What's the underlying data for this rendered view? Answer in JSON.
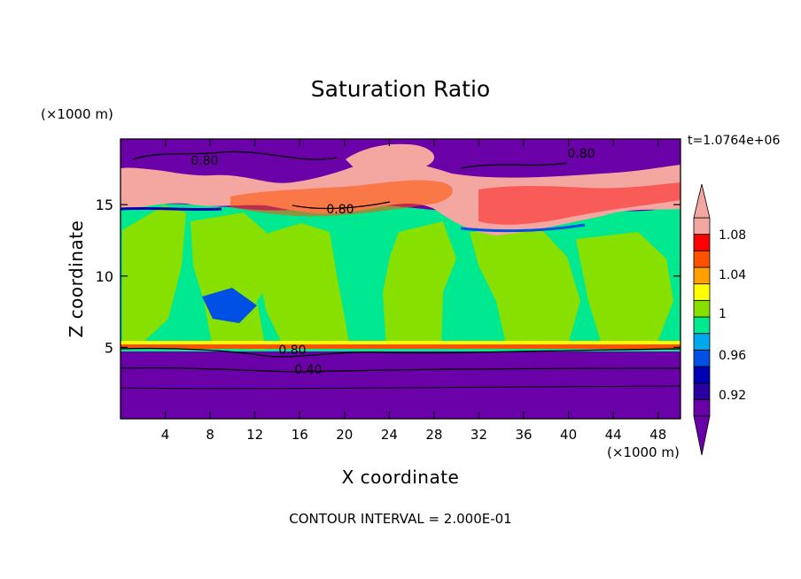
{
  "chart_data": {
    "type": "heatmap",
    "title": "Saturation Ratio",
    "xlabel": "X coordinate",
    "ylabel": "Z coordinate",
    "x_unit": "(×1000 m)",
    "y_unit": "(×1000 m)",
    "time_label": "t=1.0764e+06",
    "footer": "CONTOUR INTERVAL = 2.000E-01",
    "xlim": [
      0,
      50
    ],
    "ylim": [
      0,
      19.6
    ],
    "xticks": [
      4,
      8,
      12,
      16,
      20,
      24,
      28,
      32,
      36,
      40,
      44,
      48
    ],
    "yticks": [
      5,
      10,
      15
    ],
    "grid": false,
    "colorbar": {
      "position": "right",
      "labels": [
        "1.08",
        "1.04",
        "1",
        "0.96",
        "0.92"
      ],
      "colors_low_to_high": [
        "#6a00a8",
        "#2a00a0",
        "#0000b4",
        "#0050e6",
        "#00a8f0",
        "#00e890",
        "#88e000",
        "#ffff00",
        "#ffa000",
        "#ff5000",
        "#ff0000",
        "#f4a6a0"
      ],
      "extend": "both"
    },
    "contour_labels": [
      "0.80",
      "0.80",
      "0.80",
      "0.80",
      "0.40"
    ],
    "regions": [
      {
        "level": "below 0.92",
        "z_range": [
          0,
          4.9
        ]
      },
      {
        "level": "0.96-1.00",
        "z_range": [
          4.9,
          15
        ]
      },
      {
        "level": "1.00-1.04",
        "z_range": [
          5,
          15
        ]
      },
      {
        "level": "above 1.08",
        "z_range": [
          14.6,
          18.8
        ]
      },
      {
        "level": "below 0.92",
        "z_range": [
          17.5,
          19.6
        ]
      }
    ]
  }
}
